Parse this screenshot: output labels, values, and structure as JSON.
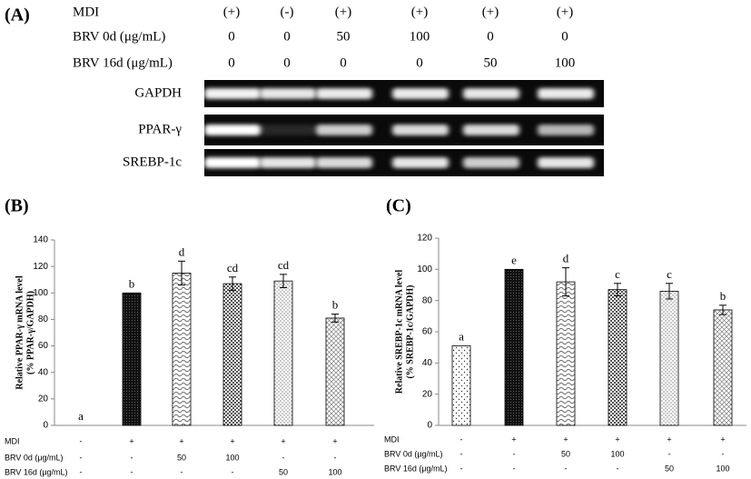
{
  "gel": {
    "panel_label": "(A)",
    "header": [
      {
        "label": "MDI",
        "cells": [
          "(+)",
          "(-)",
          "(+)",
          "(+)",
          "(+)",
          "(+)"
        ]
      },
      {
        "label": "BRV 0d (μg/mL)",
        "cells": [
          0,
          0,
          50,
          100,
          0,
          0
        ]
      },
      {
        "label": "BRV 16d (μg/mL)",
        "cells": [
          0,
          0,
          0,
          0,
          50,
          100
        ]
      }
    ],
    "bands": [
      "GAPDH",
      "PPAR-γ",
      "SREBP-1c"
    ]
  },
  "chart_data": [
    {
      "type": "bar",
      "panel_label": "(B)",
      "ylabel": [
        "Relative PPAR-γ mRNA level",
        "(% PPAR-γ/GAPDH)"
      ],
      "values": [
        0,
        100,
        115,
        107,
        109,
        81
      ],
      "errors": [
        0,
        0,
        9,
        5,
        5,
        3
      ],
      "annotations": [
        "a",
        "b",
        "d",
        "cd",
        "cd",
        "b"
      ],
      "conditions": [
        {
          "name": "MDI",
          "values": [
            "-",
            "+",
            "+",
            "+",
            "+",
            "+"
          ]
        },
        {
          "name": "BRV 0d (μg/mL)",
          "values": [
            "-",
            "-",
            "50",
            "100",
            "-",
            "-"
          ]
        },
        {
          "name": "BRV 16d (μg/mL)",
          "values": [
            "-",
            "-",
            "-",
            "-",
            "50",
            "100"
          ]
        }
      ],
      "ylim": [
        0,
        140
      ],
      "yticks": [
        0,
        20,
        40,
        60,
        80,
        100,
        120,
        140
      ]
    },
    {
      "type": "bar",
      "panel_label": "(C)",
      "ylabel": [
        "Relative SREBP-1c mRNA level",
        "(% SREBP-1c/GAPDH)"
      ],
      "values": [
        51,
        100,
        92,
        87,
        86,
        74
      ],
      "errors": [
        0,
        0,
        9,
        4,
        5,
        3
      ],
      "annotations": [
        "a",
        "e",
        "d",
        "c",
        "c",
        "b"
      ],
      "conditions": [
        {
          "name": "MDI",
          "values": [
            "-",
            "+",
            "+",
            "+",
            "+",
            "+"
          ]
        },
        {
          "name": "BRV 0d (μg/mL)",
          "values": [
            "-",
            "-",
            "50",
            "100",
            "-",
            "-"
          ]
        },
        {
          "name": "BRV 16d (μg/mL)",
          "values": [
            "-",
            "-",
            "-",
            "-",
            "50",
            "100"
          ]
        }
      ],
      "ylim": [
        0,
        120
      ],
      "yticks": [
        0,
        20,
        40,
        60,
        80,
        100,
        120
      ]
    }
  ]
}
